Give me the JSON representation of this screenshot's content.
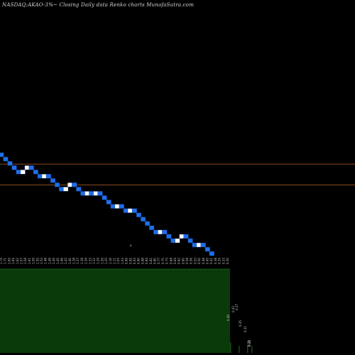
{
  "title": "NASDAQ:AKAO-3%~  Closing Daily data  Renko  charts MunafaSutra.com",
  "colors": {
    "background": "#000000",
    "up_brick": "#ffffff",
    "down_brick": "#1f6fe8",
    "brick_border": "#0a2a6a",
    "reference_line": "#8a4a22",
    "volume_fill": "#0a3a0a",
    "volume_edge": "#1c6a1c"
  },
  "chart_data": {
    "type": "renko",
    "brick_directions": [
      "down",
      "down",
      "down",
      "down",
      "down",
      "up",
      "up",
      "down",
      "down",
      "down",
      "up",
      "down",
      "down",
      "down",
      "down",
      "up",
      "up",
      "down",
      "down",
      "down",
      "up",
      "down",
      "up",
      "down",
      "down",
      "down",
      "down",
      "up",
      "down",
      "down",
      "up",
      "down",
      "down",
      "down",
      "down",
      "down",
      "down",
      "up",
      "down",
      "down",
      "down",
      "up",
      "up",
      "down",
      "down",
      "down",
      "up",
      "down",
      "down",
      "down"
    ],
    "reference_levels": [
      1.62,
      1.35
    ],
    "tick_labels": [
      "1.74",
      "1.71",
      "1.65",
      "1.64",
      "1.62",
      "1.57",
      "1.58",
      "1.61",
      "1.59",
      "1.55",
      "1.53",
      "1.48",
      "1.49",
      "1.44",
      "1.45",
      "1.46",
      "1.43",
      "1.40",
      "1.38",
      "1.37",
      "1.38",
      "1.39",
      "1.33",
      "1.32",
      "1.29",
      "1.26",
      "1.25",
      "1.16",
      "1.11",
      "1.05",
      "1.03",
      "0.99",
      "0.95",
      "0.93",
      "0.90",
      "0.88",
      "0.84",
      "0.82",
      "0.80",
      "0.77",
      "0.75",
      "0.73",
      "0.68",
      "0.64",
      "0.62",
      "0.60",
      "0.58",
      "0.56",
      "0.53",
      "0.50",
      "0.48",
      "0.45",
      "0.41",
      "0.38",
      "0.35",
      "0.33",
      "0.30"
    ],
    "volume_levels": [
      1,
      1,
      1,
      1,
      1,
      1,
      1,
      1,
      1,
      1,
      1,
      1,
      1,
      1,
      1,
      1,
      1,
      1,
      1,
      1,
      1,
      1,
      1,
      1,
      1,
      1,
      1,
      1,
      1,
      1,
      1,
      1,
      1,
      1,
      1,
      1,
      1,
      1,
      1,
      1,
      1,
      1,
      1,
      1,
      1,
      1,
      1,
      1,
      1,
      1,
      1,
      1,
      1,
      0.21,
      0.1,
      0.1,
      0.1
    ],
    "annotation_labels": [
      "0.45",
      "0.43",
      "0.37",
      "0.35",
      "0.31",
      "0.31",
      "0.28"
    ],
    "stray_mark": "a"
  }
}
